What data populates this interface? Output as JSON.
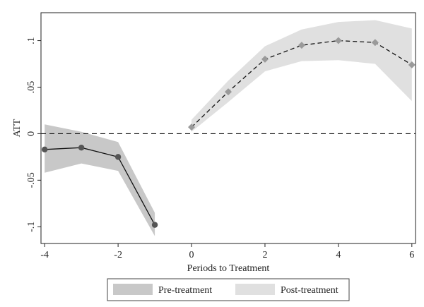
{
  "chart_data": {
    "type": "line",
    "xlabel": "Periods to Treatment",
    "ylabel": "ATT",
    "xlim": [
      -4.1,
      6.1
    ],
    "ylim": [
      -0.118,
      0.13
    ],
    "x_ticks": [
      {
        "value": -4,
        "label": "-4"
      },
      {
        "value": -2,
        "label": "-2"
      },
      {
        "value": 0,
        "label": "0"
      },
      {
        "value": 2,
        "label": "2"
      },
      {
        "value": 4,
        "label": "4"
      },
      {
        "value": 6,
        "label": "6"
      }
    ],
    "y_ticks": [
      {
        "value": -0.1,
        "label": "-.1"
      },
      {
        "value": -0.05,
        "label": "-.05"
      },
      {
        "value": 0,
        "label": "0"
      },
      {
        "value": 0.05,
        "label": ".05"
      },
      {
        "value": 0.1,
        "label": ".1"
      }
    ],
    "reference_line": {
      "y": 0,
      "style": "dashed"
    },
    "grid": false,
    "legend_position": "bottom",
    "series": [
      {
        "name": "Pre-treatment",
        "band_color": "#c8c8c8",
        "line_color": "#111111",
        "marker_color": "#555555",
        "line_style": "solid",
        "marker": "circle",
        "x": [
          -4,
          -3,
          -2,
          -1
        ],
        "y": [
          -0.017,
          -0.015,
          -0.025,
          -0.098
        ],
        "lower": [
          -0.042,
          -0.032,
          -0.04,
          -0.11
        ],
        "upper": [
          0.01,
          0.002,
          -0.009,
          -0.085
        ]
      },
      {
        "name": "Post-treatment",
        "band_color": "#e0e0e0",
        "line_color": "#111111",
        "marker_color": "#9a9a9a",
        "line_style": "dashed",
        "marker": "diamond",
        "x": [
          0,
          1,
          2,
          3,
          4,
          5,
          6
        ],
        "y": [
          0.007,
          0.045,
          0.08,
          0.095,
          0.1,
          0.098,
          0.074
        ],
        "lower": [
          0.002,
          0.034,
          0.067,
          0.078,
          0.079,
          0.075,
          0.035
        ],
        "upper": [
          0.015,
          0.057,
          0.094,
          0.112,
          0.12,
          0.122,
          0.113
        ]
      }
    ]
  }
}
